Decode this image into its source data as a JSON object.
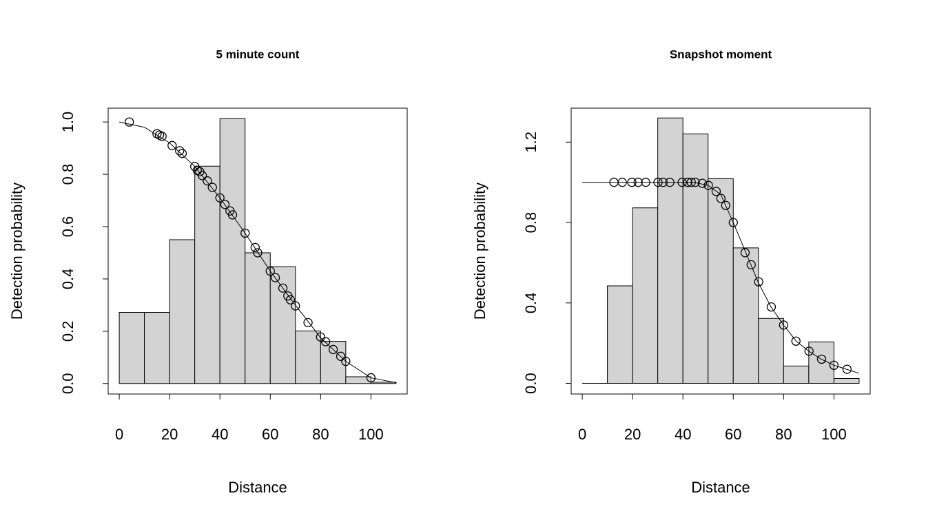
{
  "chart_data": [
    {
      "type": "histogram",
      "title": "5 minute count",
      "xlabel": "Distance",
      "ylabel": "Detection probability",
      "bins": [
        0,
        10,
        20,
        30,
        40,
        50,
        60,
        70,
        80,
        90,
        100,
        110
      ],
      "values": [
        0.272,
        0.272,
        0.55,
        0.831,
        1.013,
        0.5,
        0.447,
        0.201,
        0.161,
        0.026,
        0.005
      ],
      "color": "#d3d3d3",
      "line": {
        "x": [
          0,
          10,
          20,
          30,
          40,
          50,
          60,
          70,
          80,
          90,
          100,
          110
        ],
        "y": [
          1.0,
          0.98,
          0.92,
          0.83,
          0.71,
          0.575,
          0.43,
          0.3,
          0.175,
          0.085,
          0.022,
          0.003
        ]
      },
      "points": {
        "x": [
          4,
          15,
          16,
          17,
          21,
          24,
          25,
          30,
          31,
          32,
          33,
          35,
          37,
          40,
          42,
          44,
          45,
          50,
          54,
          55,
          60,
          62,
          65,
          67,
          68,
          70,
          75,
          80,
          82,
          85,
          88,
          90,
          100
        ],
        "y": [
          1.0,
          0.955,
          0.95,
          0.945,
          0.91,
          0.89,
          0.88,
          0.83,
          0.815,
          0.81,
          0.795,
          0.775,
          0.75,
          0.71,
          0.685,
          0.66,
          0.645,
          0.575,
          0.52,
          0.5,
          0.43,
          0.405,
          0.365,
          0.335,
          0.32,
          0.297,
          0.233,
          0.178,
          0.16,
          0.13,
          0.104,
          0.085,
          0.022
        ]
      },
      "xlim": [
        -4.4,
        114.4
      ],
      "xticks": [
        0,
        20,
        40,
        60,
        80,
        100
      ],
      "ylim": [
        -0.04,
        1.053
      ],
      "yticks": [
        {
          "value": 0,
          "label": "0.0"
        },
        0.2,
        0.4,
        0.6,
        0.8,
        {
          "value": 1,
          "label": "1.0"
        }
      ]
    },
    {
      "type": "histogram",
      "title": "Snapshot moment",
      "xlabel": "Distance",
      "ylabel": "Detection probability",
      "bins": [
        0,
        10,
        20,
        30,
        40,
        50,
        60,
        70,
        80,
        90,
        100,
        110
      ],
      "values": [
        0,
        0.485,
        0.873,
        1.32,
        1.241,
        1.018,
        0.674,
        0.323,
        0.086,
        0.206,
        0.024
      ],
      "color": "#d3d3d3",
      "line": {
        "x": [
          0,
          10,
          20,
          30,
          40,
          45,
          50,
          55,
          60,
          65,
          70,
          75,
          80,
          85,
          90,
          95,
          100,
          105,
          110
        ],
        "y": [
          1.0,
          1.0,
          1.0,
          1.0,
          1.0,
          0.998,
          0.985,
          0.94,
          0.8,
          0.65,
          0.5,
          0.38,
          0.29,
          0.21,
          0.16,
          0.12,
          0.09,
          0.07,
          0.05
        ]
      },
      "points": {
        "x": [
          12.6,
          15.9,
          19.7,
          22.2,
          25.2,
          30.1,
          32.1,
          34.8,
          39.7,
          41.9,
          43.3,
          44.9,
          47.7,
          50.1,
          53.2,
          55.1,
          57,
          60,
          64.7,
          67.1,
          70.1,
          75.1,
          80,
          84.9,
          90.1,
          95.1,
          100,
          105.2
        ],
        "y": [
          1,
          1,
          1,
          1,
          1,
          1,
          1,
          1,
          1,
          1,
          1,
          1,
          0.995,
          0.985,
          0.955,
          0.92,
          0.885,
          0.8,
          0.65,
          0.59,
          0.505,
          0.38,
          0.29,
          0.21,
          0.16,
          0.12,
          0.09,
          0.07
        ]
      },
      "xlim": [
        -4.4,
        114.4
      ],
      "xticks": [
        0,
        20,
        40,
        60,
        80,
        100
      ],
      "ylim": [
        -0.053,
        1.369
      ],
      "yticks": [
        {
          "value": 0,
          "label": "0.0"
        },
        0.4,
        0.8,
        1.2
      ]
    }
  ]
}
